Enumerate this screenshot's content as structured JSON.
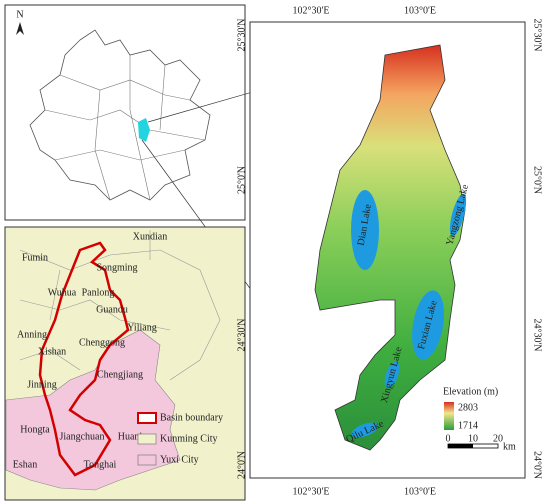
{
  "inset_map": {
    "north": "N"
  },
  "district_map": {
    "labels": [
      "Xundian",
      "Fumin",
      "Songming",
      "Wuhua",
      "Panlong",
      "Guandu",
      "Yiliang",
      "Anning",
      "Xishan",
      "Chenggong",
      "Chengjiang",
      "Jinning",
      "Hongta",
      "Jiangchuan",
      "Huaning",
      "Eshan",
      "Tonghai"
    ],
    "legend": [
      "Basin boundary",
      "Kunming City",
      "Yuxi City"
    ]
  },
  "elevation_map": {
    "top_ticks": [
      "102°30'E",
      "103°0'E"
    ],
    "bottom_ticks": [
      "102°30'E",
      "103°0'E"
    ],
    "left_ticks": [
      "25°30'N",
      "25°0'N",
      "24°30'N",
      "24°0'N"
    ],
    "right_ticks": [
      "25°30'N",
      "25°0'N",
      "24°30'N",
      "24°0'N"
    ],
    "lakes": [
      "Dian Lake",
      "Yangzong Lake",
      "Fuxian Lake",
      "Xingyun Lake",
      "Qilu Lake"
    ],
    "legend": {
      "title": "Elevation (m)",
      "max": 2803,
      "min": 1714
    },
    "scale": {
      "ticks": [
        0,
        10,
        20
      ],
      "unit": "km"
    }
  }
}
